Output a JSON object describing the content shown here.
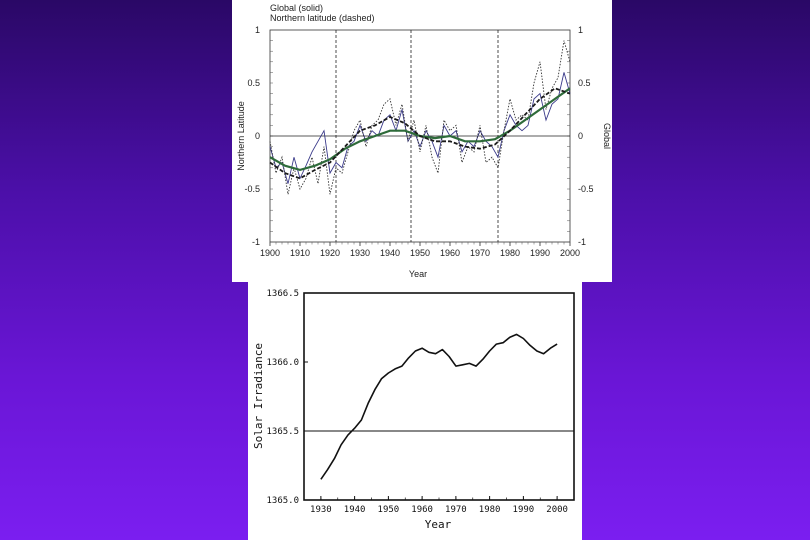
{
  "chart_data": [
    {
      "type": "line",
      "legend": [
        "Global (solid)",
        "Northern latitude (dashed)"
      ],
      "xlabel": "Year",
      "ylabel_left": "Northern Latitude",
      "ylabel_right": "Global",
      "xlim": [
        1900,
        2000
      ],
      "ylim": [
        -1,
        1
      ],
      "x_ticks": [
        "1900",
        "1910",
        "1920",
        "1930",
        "1940",
        "1950",
        "1960",
        "1970",
        "1980",
        "1990",
        "2000"
      ],
      "y_ticks_left": [
        "1",
        "0.5",
        "0",
        "-0.5",
        "-1"
      ],
      "y_ticks_right": [
        "1",
        "0.5",
        "0",
        "-0.5",
        "-1"
      ],
      "vertical_markers": [
        1922,
        1947,
        1976
      ],
      "series": [
        {
          "name": "Global annual",
          "style": "solid-thin",
          "color": "#3a3a8a",
          "x": [
            1900,
            1902,
            1904,
            1906,
            1908,
            1910,
            1912,
            1914,
            1916,
            1918,
            1920,
            1922,
            1924,
            1926,
            1928,
            1930,
            1932,
            1934,
            1936,
            1938,
            1940,
            1942,
            1944,
            1946,
            1948,
            1950,
            1952,
            1954,
            1956,
            1958,
            1960,
            1962,
            1964,
            1966,
            1968,
            1970,
            1972,
            1974,
            1976,
            1978,
            1980,
            1982,
            1984,
            1986,
            1988,
            1990,
            1992,
            1994,
            1996,
            1998,
            2000
          ],
          "y": [
            -0.1,
            -0.3,
            -0.25,
            -0.45,
            -0.2,
            -0.4,
            -0.28,
            -0.15,
            -0.05,
            0.05,
            -0.35,
            -0.25,
            -0.3,
            -0.1,
            -0.05,
            0.1,
            -0.05,
            0.05,
            0.0,
            0.15,
            0.2,
            0.05,
            0.25,
            -0.05,
            0.05,
            -0.1,
            0.05,
            -0.05,
            -0.2,
            0.1,
            0.0,
            0.05,
            -0.15,
            -0.05,
            -0.1,
            0.05,
            -0.05,
            -0.1,
            -0.2,
            0.05,
            0.2,
            0.1,
            0.05,
            0.1,
            0.35,
            0.4,
            0.15,
            0.3,
            0.35,
            0.6,
            0.4
          ]
        },
        {
          "name": "Northern latitude annual",
          "style": "dotted",
          "color": "#333333",
          "x": [
            1900,
            1902,
            1904,
            1906,
            1908,
            1910,
            1912,
            1914,
            1916,
            1918,
            1920,
            1922,
            1924,
            1926,
            1928,
            1930,
            1932,
            1934,
            1936,
            1938,
            1940,
            1942,
            1944,
            1946,
            1948,
            1950,
            1952,
            1954,
            1956,
            1958,
            1960,
            1962,
            1964,
            1966,
            1968,
            1970,
            1972,
            1974,
            1976,
            1978,
            1980,
            1982,
            1984,
            1986,
            1988,
            1990,
            1992,
            1994,
            1996,
            1998,
            2000
          ],
          "y": [
            -0.05,
            -0.35,
            -0.2,
            -0.55,
            -0.3,
            -0.5,
            -0.4,
            -0.2,
            -0.45,
            -0.1,
            -0.55,
            -0.3,
            -0.35,
            -0.15,
            0.05,
            0.15,
            -0.1,
            0.1,
            0.15,
            0.3,
            0.35,
            0.1,
            0.3,
            -0.05,
            0.15,
            -0.15,
            0.1,
            -0.2,
            -0.35,
            0.15,
            0.05,
            0.1,
            -0.25,
            -0.1,
            -0.15,
            0.1,
            -0.25,
            -0.2,
            -0.3,
            0.05,
            0.35,
            0.15,
            0.2,
            0.15,
            0.5,
            0.7,
            0.25,
            0.45,
            0.55,
            0.9,
            0.7
          ]
        },
        {
          "name": "Global smoothed",
          "style": "solid-thick",
          "color": "#2e6b3a",
          "x": [
            1900,
            1905,
            1910,
            1915,
            1920,
            1925,
            1930,
            1935,
            1940,
            1945,
            1950,
            1955,
            1960,
            1965,
            1970,
            1975,
            1980,
            1985,
            1990,
            1995,
            2000
          ],
          "y": [
            -0.2,
            -0.28,
            -0.32,
            -0.28,
            -0.22,
            -0.12,
            -0.05,
            0.0,
            0.05,
            0.05,
            0.0,
            -0.02,
            0.0,
            -0.05,
            -0.05,
            -0.03,
            0.05,
            0.15,
            0.25,
            0.35,
            0.45
          ]
        },
        {
          "name": "Northern latitude smoothed",
          "style": "dashed-thick",
          "color": "#1a1a1a",
          "x": [
            1900,
            1905,
            1910,
            1915,
            1920,
            1925,
            1930,
            1935,
            1940,
            1945,
            1950,
            1955,
            1960,
            1965,
            1970,
            1975,
            1980,
            1985,
            1990,
            1995,
            2000
          ],
          "y": [
            -0.25,
            -0.35,
            -0.4,
            -0.32,
            -0.25,
            -0.1,
            0.05,
            0.1,
            0.18,
            0.12,
            0.0,
            -0.05,
            -0.05,
            -0.1,
            -0.12,
            -0.08,
            0.05,
            0.2,
            0.35,
            0.45,
            0.4
          ]
        }
      ]
    },
    {
      "type": "line",
      "xlabel": "Year",
      "ylabel": "Solar Irradiance",
      "xlim": [
        1925,
        2005
      ],
      "ylim": [
        1365.0,
        1366.5
      ],
      "x_ticks": [
        "1930",
        "1940",
        "1950",
        "1960",
        "1970",
        "1980",
        "1990",
        "2000"
      ],
      "y_ticks": [
        "1366.5",
        "1366.0",
        "1365.5",
        "1365.0"
      ],
      "reference_line": 1365.5,
      "series": [
        {
          "name": "Solar irradiance",
          "x": [
            1930,
            1932,
            1934,
            1936,
            1938,
            1940,
            1942,
            1944,
            1946,
            1948,
            1950,
            1952,
            1954,
            1956,
            1958,
            1960,
            1962,
            1964,
            1966,
            1968,
            1970,
            1972,
            1974,
            1976,
            1978,
            1980,
            1982,
            1984,
            1986,
            1988,
            1990,
            1992,
            1994,
            1996,
            1998,
            2000
          ],
          "y": [
            1365.15,
            1365.22,
            1365.3,
            1365.4,
            1365.47,
            1365.52,
            1365.58,
            1365.7,
            1365.8,
            1365.88,
            1365.92,
            1365.95,
            1365.97,
            1366.03,
            1366.08,
            1366.1,
            1366.07,
            1366.06,
            1366.09,
            1366.04,
            1365.97,
            1365.98,
            1365.99,
            1365.97,
            1366.02,
            1366.08,
            1366.13,
            1366.14,
            1366.18,
            1366.2,
            1366.17,
            1366.12,
            1366.08,
            1366.06,
            1366.1,
            1366.13
          ]
        }
      ]
    }
  ]
}
